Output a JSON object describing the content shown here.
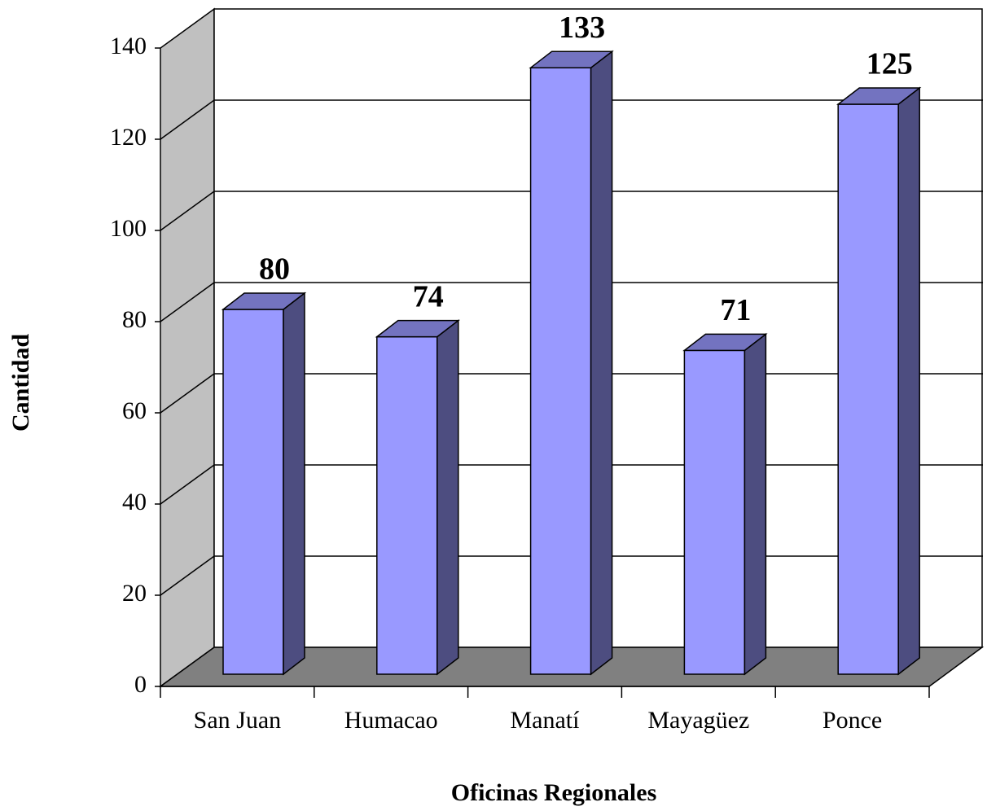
{
  "chart_data": {
    "type": "bar3d",
    "categories": [
      "San Juan",
      "Humacao",
      "Manatí",
      "Mayagüez",
      "Ponce"
    ],
    "values": [
      80,
      74,
      133,
      71,
      125
    ],
    "color": "#9999ff",
    "ylim": [
      0,
      140
    ],
    "yticks": [
      0,
      20,
      40,
      60,
      80,
      100,
      120,
      140
    ],
    "grid": true,
    "xlabel": "Oficinas Regionales",
    "ylabel": "Cantidad"
  }
}
